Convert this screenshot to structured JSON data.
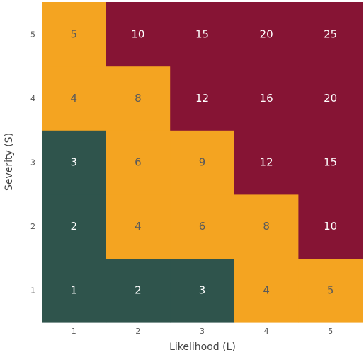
{
  "chart_data": {
    "type": "heatmap",
    "title": "",
    "xlabel": "Likelihood (L)",
    "ylabel": "Severity (S)",
    "x_ticks": [
      "1",
      "2",
      "3",
      "4",
      "5"
    ],
    "y_ticks": [
      "1",
      "2",
      "3",
      "4",
      "5"
    ],
    "grid": false,
    "legend": "none",
    "values": [
      [
        1,
        2,
        3,
        4,
        5
      ],
      [
        2,
        4,
        6,
        8,
        10
      ],
      [
        3,
        6,
        9,
        12,
        15
      ],
      [
        4,
        8,
        12,
        16,
        20
      ],
      [
        5,
        10,
        15,
        20,
        25
      ]
    ],
    "rows_order": "severity 1 (bottom) to 5 (top)",
    "color_bands": [
      {
        "min": 1,
        "max": 3,
        "color": "#2f544c",
        "text_color": "#ffffff"
      },
      {
        "min": 4,
        "max": 9,
        "color": "#f4a421",
        "text_color": "#5a5a5a"
      },
      {
        "min": 10,
        "max": 25,
        "color": "#861434",
        "text_color": "#ffffff"
      }
    ],
    "exceptions": [
      {
        "likelihood": 1,
        "severity": 3,
        "color": "#2f544c",
        "text_color": "#ffffff"
      },
      {
        "likelihood": 1,
        "severity": 5,
        "color": "#f4a421",
        "text_color": "#5a5a5a"
      }
    ]
  }
}
